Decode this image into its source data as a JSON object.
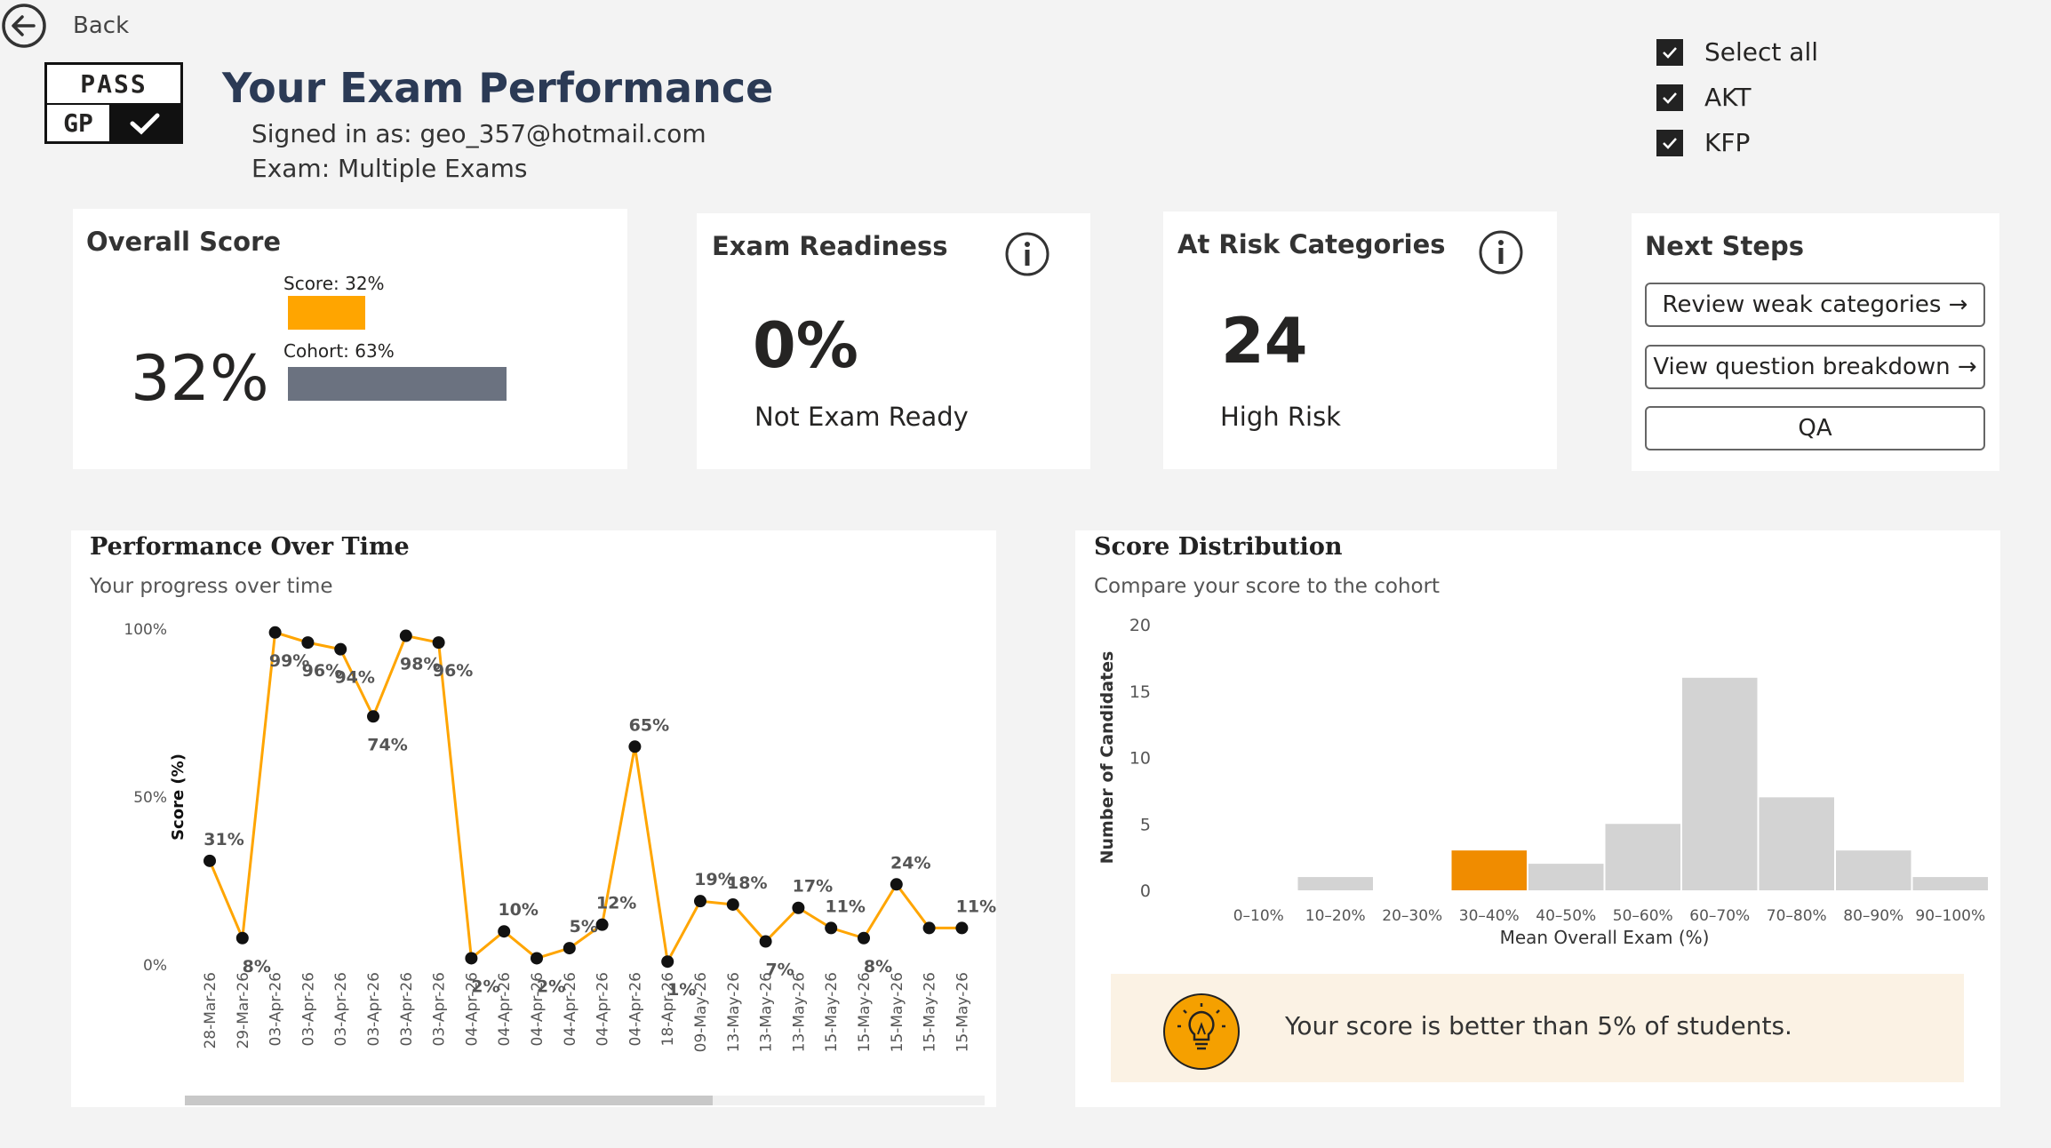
{
  "nav": {
    "back_label": "Back"
  },
  "header": {
    "logo_top": "PASS",
    "logo_bottom": "GP",
    "title": "Your Exam Performance",
    "signed_in": "Signed in as: geo_357@hotmail.com",
    "exam": "Exam: Multiple Exams"
  },
  "filters": [
    {
      "label": "Select all",
      "checked": true
    },
    {
      "label": "AKT",
      "checked": true
    },
    {
      "label": "KFP",
      "checked": true
    }
  ],
  "overall": {
    "title": "Overall Score",
    "value": "32%",
    "score_label": "Score: 32%",
    "score_pct": 32,
    "cohort_label": "Cohort: 63%",
    "cohort_pct": 63,
    "score_color": "#FFA500",
    "cohort_color": "#6B7280"
  },
  "readiness": {
    "title": "Exam Readiness",
    "value": "0%",
    "label": "Not Exam Ready"
  },
  "risk": {
    "title": "At Risk Categories",
    "value": "24",
    "label": "High Risk"
  },
  "next_steps": {
    "title": "Next Steps",
    "buttons": [
      "Review weak categories →",
      "View question breakdown →",
      "QA"
    ]
  },
  "performance": {
    "title": "Performance Over Time",
    "subtitle": "Your progress over time",
    "scroll_fraction_visible": 0.66
  },
  "distribution": {
    "title": "Score Distribution",
    "subtitle": "Compare your score to the cohort",
    "insight": "Your score is better than 5% of students."
  },
  "chart_data": [
    {
      "type": "line",
      "ylabel": "Score (%)",
      "ylim": [
        0,
        100
      ],
      "yticks": [
        "0%",
        "50%",
        "100%"
      ],
      "line_color": "#FFA500",
      "categories": [
        "28-Mar-26",
        "29-Mar-26",
        "03-Apr-26",
        "03-Apr-26",
        "03-Apr-26",
        "03-Apr-26",
        "03-Apr-26",
        "03-Apr-26",
        "04-Apr-26",
        "04-Apr-26",
        "04-Apr-26",
        "04-Apr-26",
        "04-Apr-26",
        "04-Apr-26",
        "18-Apr-26",
        "09-May-26",
        "13-May-26",
        "13-May-26",
        "13-May-26",
        "15-May-26",
        "15-May-26",
        "15-May-26",
        "15-May-26",
        "15-May-26"
      ],
      "values": [
        31,
        8,
        99,
        96,
        94,
        74,
        98,
        96,
        2,
        10,
        2,
        5,
        12,
        65,
        1,
        19,
        18,
        7,
        17,
        11,
        8,
        24,
        11,
        11
      ],
      "labels": [
        "31%",
        "8%",
        "99%",
        "96%",
        "94%",
        "74%",
        "98%",
        "96%",
        "2%",
        "10%",
        "2%",
        "5%",
        "12%",
        "65%",
        "1%",
        "19%",
        "18%",
        "7%",
        "17%",
        "11%",
        "8%",
        "24%",
        "",
        "11%"
      ]
    },
    {
      "type": "bar",
      "xlabel": "Mean Overall Exam (%)",
      "ylabel": "Number of Candidates",
      "ylim": [
        0,
        20
      ],
      "yticks": [
        0,
        5,
        10,
        15,
        20
      ],
      "categories": [
        "0–10%",
        "10–20%",
        "20–30%",
        "30–40%",
        "40–50%",
        "50–60%",
        "60–70%",
        "70–80%",
        "80–90%",
        "90–100%"
      ],
      "values": [
        0,
        1,
        0,
        3,
        2,
        5,
        16,
        7,
        3,
        1
      ],
      "highlight_index": 3,
      "highlight_color": "#F08C00",
      "bar_color": "#D3D3D3"
    }
  ]
}
